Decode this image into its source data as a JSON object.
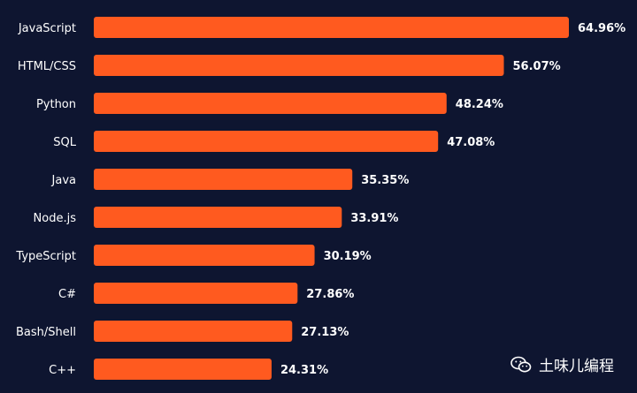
{
  "chart_data": {
    "type": "bar",
    "orientation": "horizontal",
    "categories": [
      "JavaScript",
      "HTML/CSS",
      "Python",
      "SQL",
      "Java",
      "Node.js",
      "TypeScript",
      "C#",
      "Bash/Shell",
      "C++"
    ],
    "values": [
      64.96,
      56.07,
      48.24,
      47.08,
      35.35,
      33.91,
      30.19,
      27.86,
      27.13,
      24.31
    ],
    "value_labels": [
      "64.96%",
      "56.07%",
      "48.24%",
      "47.08%",
      "35.35%",
      "33.91%",
      "30.19%",
      "27.86%",
      "27.13%",
      "24.31%"
    ],
    "title": "",
    "xlabel": "",
    "ylabel": "",
    "xlim": [
      0,
      64.96
    ],
    "grid": false,
    "legend": "none",
    "colors": {
      "bar": "#ff5a1f",
      "background": "#0e1530",
      "text": "#ffffff"
    }
  },
  "watermark": {
    "icon": "wechat-icon",
    "text": "土味儿编程"
  }
}
